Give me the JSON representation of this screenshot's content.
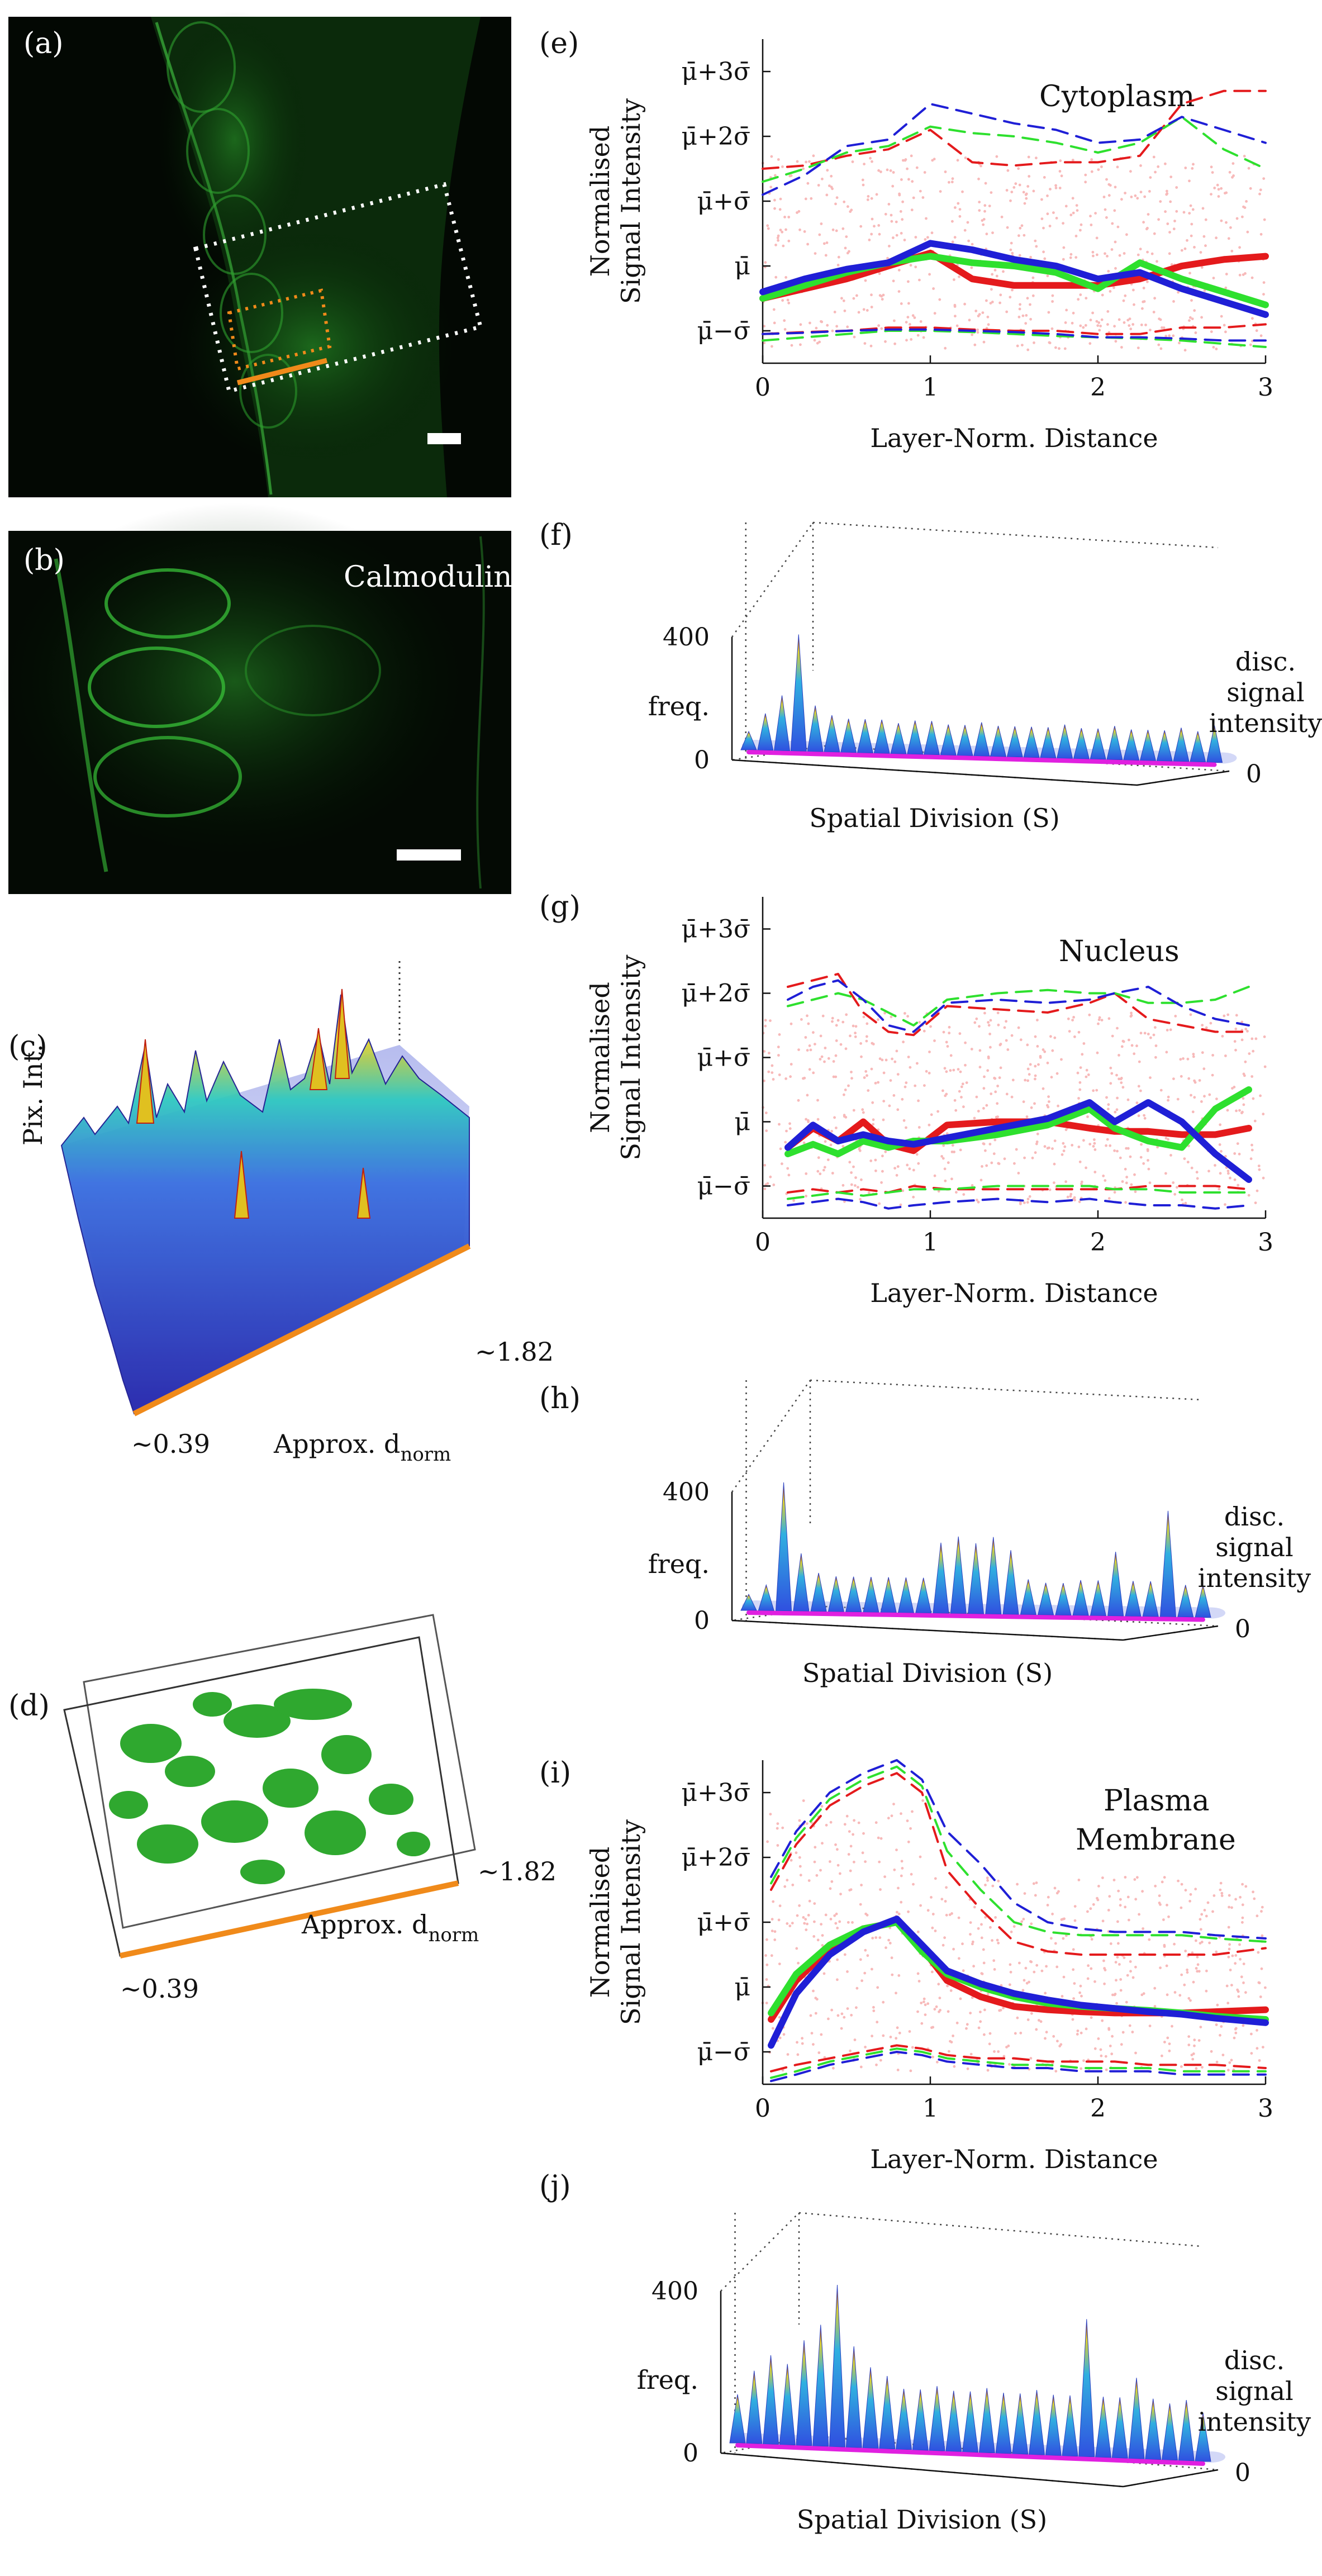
{
  "panels": {
    "a": {
      "label": "(a)"
    },
    "b": {
      "label": "(b)",
      "marker": "Calmodulin"
    },
    "c": {
      "label": "(c)",
      "zlabel": "Pix. Int.",
      "xlabel": "Approx. d",
      "xlabel_sub": "norm",
      "start": "~0.39",
      "end": "~1.82"
    },
    "d": {
      "label": "(d)",
      "xlabel": "Approx. d",
      "xlabel_sub": "norm",
      "start": "~0.39",
      "end": "~1.82"
    },
    "e": {
      "label": "(e)",
      "title": "Cytoplasm"
    },
    "f": {
      "label": "(f)"
    },
    "g": {
      "label": "(g)",
      "title": "Nucleus"
    },
    "h": {
      "label": "(h)"
    },
    "i": {
      "label": "(i)",
      "title_line1": "Plasma",
      "title_line2": "Membrane"
    },
    "j": {
      "label": "(j)"
    }
  },
  "line_axes": {
    "ylabel_line1": "Normalised",
    "ylabel_line2": "Signal Intensity",
    "xlabel": "Layer-Norm. Distance",
    "xticks": [
      "0",
      "1",
      "2",
      "3"
    ],
    "ytick_mu3": "μ̄+3σ̄",
    "ytick_mu2": "μ̄+2σ̄",
    "ytick_mu1": "μ̄+σ̄",
    "ytick_mu": "μ̄",
    "ytick_mum1": "μ̄−σ̄"
  },
  "hist_axes": {
    "zlabel": "freq.",
    "z_max": "400",
    "z_min": "0",
    "xlabel": "Spatial Division (S)",
    "y_max": "31",
    "y_min": "0",
    "ylabel_line1": "disc.",
    "ylabel_line2": "signal",
    "ylabel_line3": "intensity"
  },
  "colors": {
    "red": "#e41a1c",
    "green": "#2ee02e",
    "blue": "#1f1fd6",
    "scatter": "#f7b9b9",
    "magenta": "#e020e0",
    "orange": "#f08a1a",
    "micro_green": "#39c43c"
  },
  "chart_data": [
    {
      "panel": "e",
      "type": "line",
      "title": "Cytoplasm",
      "xlabel": "Layer-Norm. Distance",
      "ylabel": "Normalised Signal Intensity",
      "xlim": [
        0,
        3
      ],
      "ylim": [
        -1.5,
        3.5
      ],
      "yticks": [
        "μ̄−σ̄",
        "μ̄",
        "μ̄+σ̄",
        "μ̄+2σ̄",
        "μ̄+3σ̄"
      ],
      "x": [
        0,
        0.25,
        0.5,
        0.75,
        1.0,
        1.25,
        1.5,
        1.75,
        2.0,
        2.25,
        2.5,
        2.75,
        3.0
      ],
      "series": [
        {
          "color": "red",
          "style": "solid",
          "values": [
            -0.5,
            -0.35,
            -0.2,
            0.0,
            0.2,
            -0.2,
            -0.3,
            -0.3,
            -0.3,
            -0.2,
            0.0,
            0.1,
            0.15
          ]
        },
        {
          "color": "green",
          "style": "solid",
          "values": [
            -0.5,
            -0.3,
            -0.1,
            0.05,
            0.15,
            0.05,
            0.0,
            -0.1,
            -0.35,
            0.05,
            -0.2,
            -0.4,
            -0.6
          ]
        },
        {
          "color": "blue",
          "style": "solid",
          "values": [
            -0.4,
            -0.2,
            -0.05,
            0.05,
            0.35,
            0.25,
            0.1,
            0.0,
            -0.2,
            -0.1,
            -0.35,
            -0.55,
            -0.75
          ]
        },
        {
          "color": "red",
          "style": "dashed",
          "values": [
            1.5,
            1.55,
            1.7,
            1.8,
            2.1,
            1.6,
            1.55,
            1.6,
            1.6,
            1.7,
            2.5,
            2.7,
            2.7
          ]
        },
        {
          "color": "green",
          "style": "dashed",
          "values": [
            1.3,
            1.5,
            1.75,
            1.85,
            2.15,
            2.05,
            2.0,
            1.9,
            1.75,
            1.9,
            2.3,
            1.8,
            1.5
          ]
        },
        {
          "color": "blue",
          "style": "dashed",
          "values": [
            1.1,
            1.4,
            1.85,
            1.95,
            2.5,
            2.35,
            2.2,
            2.1,
            1.9,
            1.95,
            2.3,
            2.1,
            1.9
          ]
        },
        {
          "color": "red",
          "style": "dashed",
          "values": [
            -1.05,
            -1.02,
            -1.0,
            -0.95,
            -0.95,
            -0.98,
            -1.0,
            -1.0,
            -1.05,
            -1.05,
            -0.95,
            -0.95,
            -0.9
          ]
        },
        {
          "color": "green",
          "style": "dashed",
          "values": [
            -1.15,
            -1.1,
            -1.05,
            -1.0,
            -1.0,
            -1.02,
            -1.05,
            -1.08,
            -1.1,
            -1.12,
            -1.15,
            -1.2,
            -1.25
          ]
        },
        {
          "color": "blue",
          "style": "dashed",
          "values": [
            -1.05,
            -1.03,
            -1.0,
            -0.98,
            -0.98,
            -1.0,
            -1.02,
            -1.05,
            -1.1,
            -1.1,
            -1.12,
            -1.15,
            -1.15
          ]
        }
      ]
    },
    {
      "panel": "f",
      "type": "histogram-3d",
      "zlabel": "freq.",
      "zlim": [
        0,
        400
      ],
      "ylim": [
        0,
        31
      ],
      "xlabel": "Spatial Division (S)",
      "ylabel": "disc. signal intensity",
      "peak_frequencies": [
        60,
        120,
        180,
        380,
        150,
        120,
        110,
        110,
        110,
        100,
        110,
        110,
        100,
        100,
        110,
        100,
        100,
        100,
        100,
        110,
        100,
        100,
        110,
        100,
        100,
        100,
        110,
        100,
        120
      ]
    },
    {
      "panel": "g",
      "type": "line",
      "title": "Nucleus",
      "xlabel": "Layer-Norm. Distance",
      "ylabel": "Normalised Signal Intensity",
      "xlim": [
        0,
        3
      ],
      "ylim": [
        -1.5,
        3.5
      ],
      "yticks": [
        "μ̄−σ̄",
        "μ̄",
        "μ̄+σ̄",
        "μ̄+2σ̄",
        "μ̄+3σ̄"
      ],
      "x": [
        0.15,
        0.3,
        0.45,
        0.6,
        0.75,
        0.9,
        1.1,
        1.4,
        1.7,
        1.95,
        2.1,
        2.3,
        2.5,
        2.7,
        2.9
      ],
      "series": [
        {
          "color": "red",
          "style": "solid",
          "values": [
            -0.4,
            -0.1,
            -0.3,
            0.0,
            -0.35,
            -0.45,
            -0.05,
            0.0,
            0.0,
            -0.1,
            -0.15,
            -0.15,
            -0.2,
            -0.2,
            -0.1
          ]
        },
        {
          "color": "green",
          "style": "solid",
          "values": [
            -0.5,
            -0.35,
            -0.5,
            -0.3,
            -0.4,
            -0.3,
            -0.3,
            -0.2,
            -0.05,
            0.2,
            -0.1,
            -0.3,
            -0.4,
            0.2,
            0.5
          ]
        },
        {
          "color": "blue",
          "style": "solid",
          "values": [
            -0.4,
            -0.05,
            -0.3,
            -0.2,
            -0.3,
            -0.35,
            -0.25,
            -0.1,
            0.05,
            0.3,
            0.0,
            0.3,
            0.0,
            -0.5,
            -0.9
          ]
        },
        {
          "color": "red",
          "style": "dashed",
          "values": [
            2.1,
            2.2,
            2.3,
            1.7,
            1.4,
            1.35,
            1.8,
            1.75,
            1.7,
            1.85,
            2.0,
            1.6,
            1.5,
            1.4,
            1.4
          ]
        },
        {
          "color": "green",
          "style": "dashed",
          "values": [
            1.8,
            1.9,
            2.0,
            1.9,
            1.7,
            1.5,
            1.9,
            2.0,
            2.05,
            2.0,
            2.0,
            1.85,
            1.85,
            1.9,
            2.1
          ]
        },
        {
          "color": "blue",
          "style": "dashed",
          "values": [
            1.9,
            2.1,
            2.2,
            1.9,
            1.5,
            1.4,
            1.85,
            1.9,
            1.85,
            1.9,
            2.0,
            2.1,
            1.8,
            1.6,
            1.5
          ]
        },
        {
          "color": "red",
          "style": "dashed",
          "values": [
            -1.1,
            -1.05,
            -1.1,
            -1.05,
            -1.1,
            -1.0,
            -1.05,
            -1.05,
            -1.05,
            -1.05,
            -1.05,
            -1.0,
            -1.0,
            -1.0,
            -1.05
          ]
        },
        {
          "color": "green",
          "style": "dashed",
          "values": [
            -1.2,
            -1.15,
            -1.1,
            -1.15,
            -1.1,
            -1.05,
            -1.05,
            -1.0,
            -1.0,
            -1.0,
            -1.05,
            -1.05,
            -1.1,
            -1.1,
            -1.1
          ]
        },
        {
          "color": "blue",
          "style": "dashed",
          "values": [
            -1.3,
            -1.25,
            -1.2,
            -1.25,
            -1.35,
            -1.3,
            -1.25,
            -1.2,
            -1.25,
            -1.2,
            -1.25,
            -1.3,
            -1.3,
            -1.35,
            -1.3
          ]
        }
      ]
    },
    {
      "panel": "h",
      "type": "histogram-3d",
      "zlabel": "freq.",
      "zlim": [
        0,
        400
      ],
      "ylim": [
        0,
        31
      ],
      "xlabel": "Spatial Division (S)",
      "ylabel": "disc. signal intensity",
      "peak_frequencies": [
        50,
        80,
        400,
        180,
        120,
        110,
        110,
        110,
        110,
        110,
        110,
        220,
        240,
        220,
        240,
        200,
        110,
        100,
        100,
        110,
        110,
        200,
        110,
        110,
        330,
        100,
        100
      ]
    },
    {
      "panel": "i",
      "type": "line",
      "title": "Plasma Membrane",
      "xlabel": "Layer-Norm. Distance",
      "ylabel": "Normalised Signal Intensity",
      "xlim": [
        0,
        3
      ],
      "ylim": [
        -1.5,
        3.5
      ],
      "yticks": [
        "μ̄−σ̄",
        "μ̄",
        "μ̄+σ̄",
        "μ̄+2σ̄",
        "μ̄+3σ̄"
      ],
      "x": [
        0.05,
        0.2,
        0.4,
        0.6,
        0.8,
        0.95,
        1.1,
        1.3,
        1.5,
        1.7,
        1.9,
        2.1,
        2.3,
        2.5,
        2.7,
        3.0
      ],
      "series": [
        {
          "color": "red",
          "style": "solid",
          "values": [
            -0.5,
            0.1,
            0.6,
            0.9,
            1.0,
            0.6,
            0.1,
            -0.15,
            -0.3,
            -0.35,
            -0.38,
            -0.4,
            -0.4,
            -0.4,
            -0.38,
            -0.35
          ]
        },
        {
          "color": "green",
          "style": "solid",
          "values": [
            -0.4,
            0.2,
            0.65,
            0.9,
            1.0,
            0.55,
            0.2,
            0.0,
            -0.15,
            -0.25,
            -0.3,
            -0.33,
            -0.36,
            -0.4,
            -0.45,
            -0.5
          ]
        },
        {
          "color": "blue",
          "style": "solid",
          "values": [
            -0.9,
            -0.1,
            0.5,
            0.85,
            1.05,
            0.65,
            0.25,
            0.05,
            -0.1,
            -0.2,
            -0.28,
            -0.33,
            -0.38,
            -0.42,
            -0.48,
            -0.55
          ]
        },
        {
          "color": "red",
          "style": "dashed",
          "values": [
            1.5,
            2.2,
            2.8,
            3.1,
            3.3,
            3.0,
            1.8,
            1.2,
            0.7,
            0.55,
            0.5,
            0.5,
            0.5,
            0.5,
            0.5,
            0.6
          ]
        },
        {
          "color": "green",
          "style": "dashed",
          "values": [
            1.6,
            2.3,
            2.9,
            3.2,
            3.4,
            3.1,
            2.1,
            1.5,
            1.0,
            0.85,
            0.8,
            0.8,
            0.8,
            0.8,
            0.75,
            0.7
          ]
        },
        {
          "color": "blue",
          "style": "dashed",
          "values": [
            1.7,
            2.4,
            3.0,
            3.3,
            3.5,
            3.2,
            2.4,
            1.9,
            1.3,
            1.0,
            0.9,
            0.85,
            0.85,
            0.85,
            0.8,
            0.75
          ]
        },
        {
          "color": "red",
          "style": "dashed",
          "values": [
            -1.3,
            -1.2,
            -1.1,
            -1.0,
            -0.9,
            -0.95,
            -1.05,
            -1.1,
            -1.1,
            -1.15,
            -1.15,
            -1.15,
            -1.2,
            -1.2,
            -1.2,
            -1.25
          ]
        },
        {
          "color": "green",
          "style": "dashed",
          "values": [
            -1.4,
            -1.3,
            -1.15,
            -1.05,
            -0.95,
            -1.0,
            -1.1,
            -1.15,
            -1.2,
            -1.2,
            -1.25,
            -1.25,
            -1.25,
            -1.3,
            -1.3,
            -1.3
          ]
        },
        {
          "color": "blue",
          "style": "dashed",
          "values": [
            -1.45,
            -1.35,
            -1.2,
            -1.1,
            -1.0,
            -1.05,
            -1.15,
            -1.2,
            -1.25,
            -1.25,
            -1.3,
            -1.3,
            -1.3,
            -1.35,
            -1.35,
            -1.35
          ]
        }
      ]
    },
    {
      "panel": "j",
      "type": "histogram-3d",
      "zlabel": "freq.",
      "zlim": [
        0,
        400
      ],
      "ylim": [
        0,
        31
      ],
      "xlabel": "Spatial Division (S)",
      "ylabel": "disc. signal intensity",
      "peak_frequencies": [
        120,
        180,
        220,
        200,
        260,
        300,
        400,
        250,
        200,
        180,
        150,
        150,
        160,
        150,
        150,
        160,
        150,
        150,
        160,
        150,
        150,
        340,
        150,
        150,
        200,
        150,
        140,
        150,
        120
      ]
    }
  ]
}
